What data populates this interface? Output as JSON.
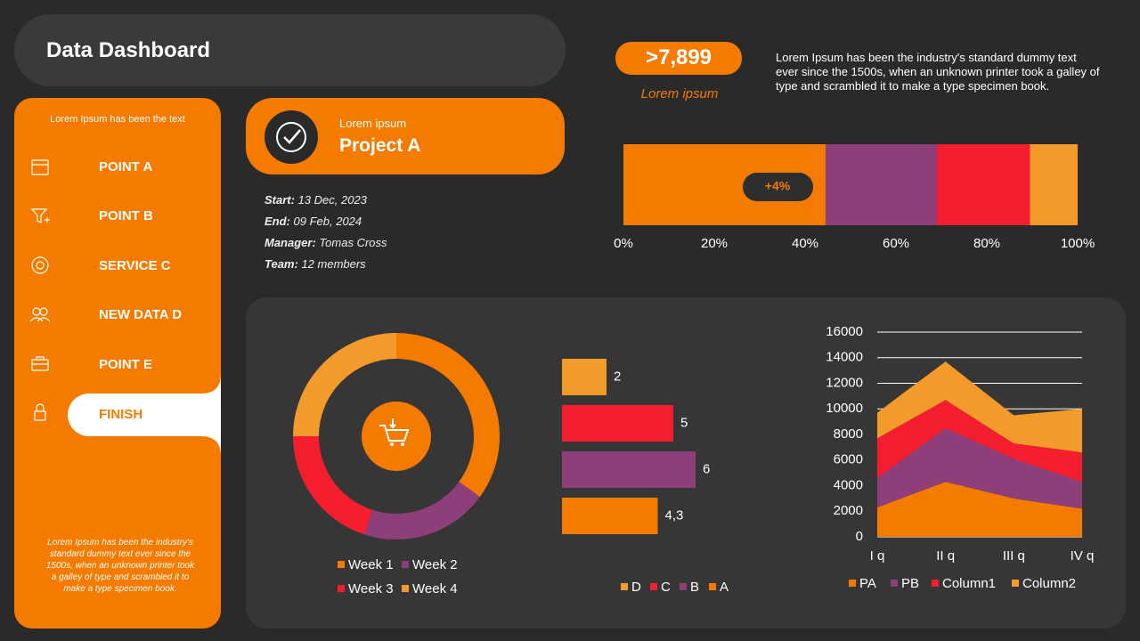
{
  "header": {
    "title": "Data Dashboard"
  },
  "stat": {
    "value": ">7,899",
    "caption": "Lorem ipsum",
    "text": "Lorem Ipsum has been the industry's standard dummy text ever since the 1500s, when an unknown printer took a galley of type and scrambled it to make a type specimen book."
  },
  "sidebar": {
    "heading": "Lorem Ipsum has been the text",
    "items": [
      "POINT A",
      "POINT B",
      "SERVICE C",
      "NEW DATA D",
      "POINT E",
      "FINISH"
    ],
    "note": "Lorem Ipsum has been the industry's standard dummy text ever since the 1500s, when an unknown printer took a galley of type and scrambled it to make a type specimen book."
  },
  "project": {
    "label": "Lorem ipsum",
    "title": "Project A",
    "details": [
      {
        "key": "Start:",
        "value": "13 Dec, 2023"
      },
      {
        "key": "End:",
        "value": "09 Feb, 2024"
      },
      {
        "key": "Manager:",
        "value": "Tomas Cross"
      },
      {
        "key": "Team:",
        "value": "12 members"
      }
    ]
  },
  "chart_data": [
    {
      "type": "stacked_bar",
      "orientation": "horizontal",
      "categories": [
        null
      ],
      "series": [
        {
          "color": "#f47b00",
          "values": [
            44.5
          ]
        },
        {
          "color": "#8e3f7a",
          "values": [
            24.5
          ]
        },
        {
          "color": "#f51e2e",
          "values": [
            20.5
          ]
        },
        {
          "color": "#f29b2b",
          "values": [
            10.5
          ]
        }
      ],
      "xlim": [
        0,
        100
      ],
      "xticks": [
        {
          "value": 0,
          "label": "0%"
        },
        {
          "value": 20,
          "label": "20%"
        },
        {
          "value": 40,
          "label": "40%"
        },
        {
          "value": 60,
          "label": "60%"
        },
        {
          "value": 80,
          "label": "80%"
        },
        {
          "value": 100,
          "label": "100%"
        }
      ],
      "annotation": "+4%"
    },
    {
      "type": "donut",
      "categories": [
        "Week 1",
        "Week 2",
        "Week 3",
        "Week 4"
      ],
      "values": [
        35,
        20,
        20,
        25
      ],
      "colors": [
        "#f47b00",
        "#8e3f7a",
        "#f51e2e",
        "#f29b2b"
      ]
    },
    {
      "type": "bar",
      "orientation": "horizontal",
      "categories": [
        "D",
        "C",
        "B",
        "A"
      ],
      "values": [
        2,
        5,
        6,
        4.3
      ],
      "value_labels": [
        "2",
        "5",
        "6",
        "4,3"
      ],
      "colors": [
        "#f29b2b",
        "#f51e2e",
        "#8e3f7a",
        "#f47b00"
      ]
    },
    {
      "type": "stacked_area",
      "categories": [
        "I q",
        "II q",
        "III q",
        "IV q"
      ],
      "series": [
        {
          "name": "PA",
          "color": "#f47b00",
          "values": [
            2300,
            4300,
            3000,
            2200
          ]
        },
        {
          "name": "PB",
          "color": "#8e3f7a",
          "values": [
            2300,
            4200,
            3100,
            2100
          ]
        },
        {
          "name": "Column1",
          "color": "#f51e2e",
          "values": [
            3100,
            2200,
            1200,
            2300
          ]
        },
        {
          "name": "Column2",
          "color": "#f29b2b",
          "values": [
            2000,
            3000,
            2200,
            3400
          ]
        }
      ],
      "ylim": [
        0,
        16000
      ],
      "yticks": [
        0,
        2000,
        4000,
        6000,
        8000,
        10000,
        12000,
        14000,
        16000
      ],
      "grid": true
    }
  ]
}
